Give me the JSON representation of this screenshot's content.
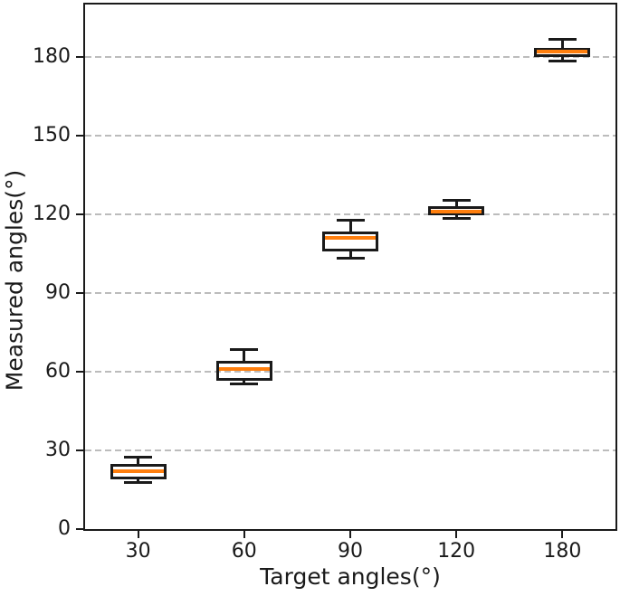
{
  "figure": {
    "background": "#ffffff"
  },
  "chart_data": {
    "type": "box",
    "title": "",
    "xlabel": "Target angles(°)",
    "ylabel": "Measured angles(°)",
    "categories": [
      "30",
      "60",
      "90",
      "120",
      "180"
    ],
    "ylim": [
      0,
      200
    ],
    "yticks": [
      0,
      30,
      60,
      90,
      120,
      150,
      180
    ],
    "grid": {
      "axis": "y",
      "style": "dashed"
    },
    "legend": "none",
    "boxes": [
      {
        "category": "30",
        "whislo": 18,
        "q1": 19,
        "med": 22,
        "q3": 25,
        "whishi": 27.5
      },
      {
        "category": "60",
        "whislo": 55.5,
        "q1": 56.5,
        "med": 61,
        "q3": 64,
        "whishi": 68.5
      },
      {
        "category": "90",
        "whislo": 103.5,
        "q1": 106,
        "med": 111,
        "q3": 113.5,
        "whishi": 118
      },
      {
        "category": "120",
        "whislo": 118.5,
        "q1": 119.5,
        "med": 121,
        "q3": 123,
        "whishi": 125.5
      },
      {
        "category": "180",
        "whislo": 178.5,
        "q1": 180,
        "med": 182,
        "q3": 183.5,
        "whishi": 187
      }
    ],
    "colors": {
      "box_edge": "#1a1a1a",
      "median": "#ff7f0e",
      "grid": "#bcbcbc",
      "spine": "#1a1a1a",
      "text": "#1a1a1a",
      "background": "#ffffff"
    }
  }
}
